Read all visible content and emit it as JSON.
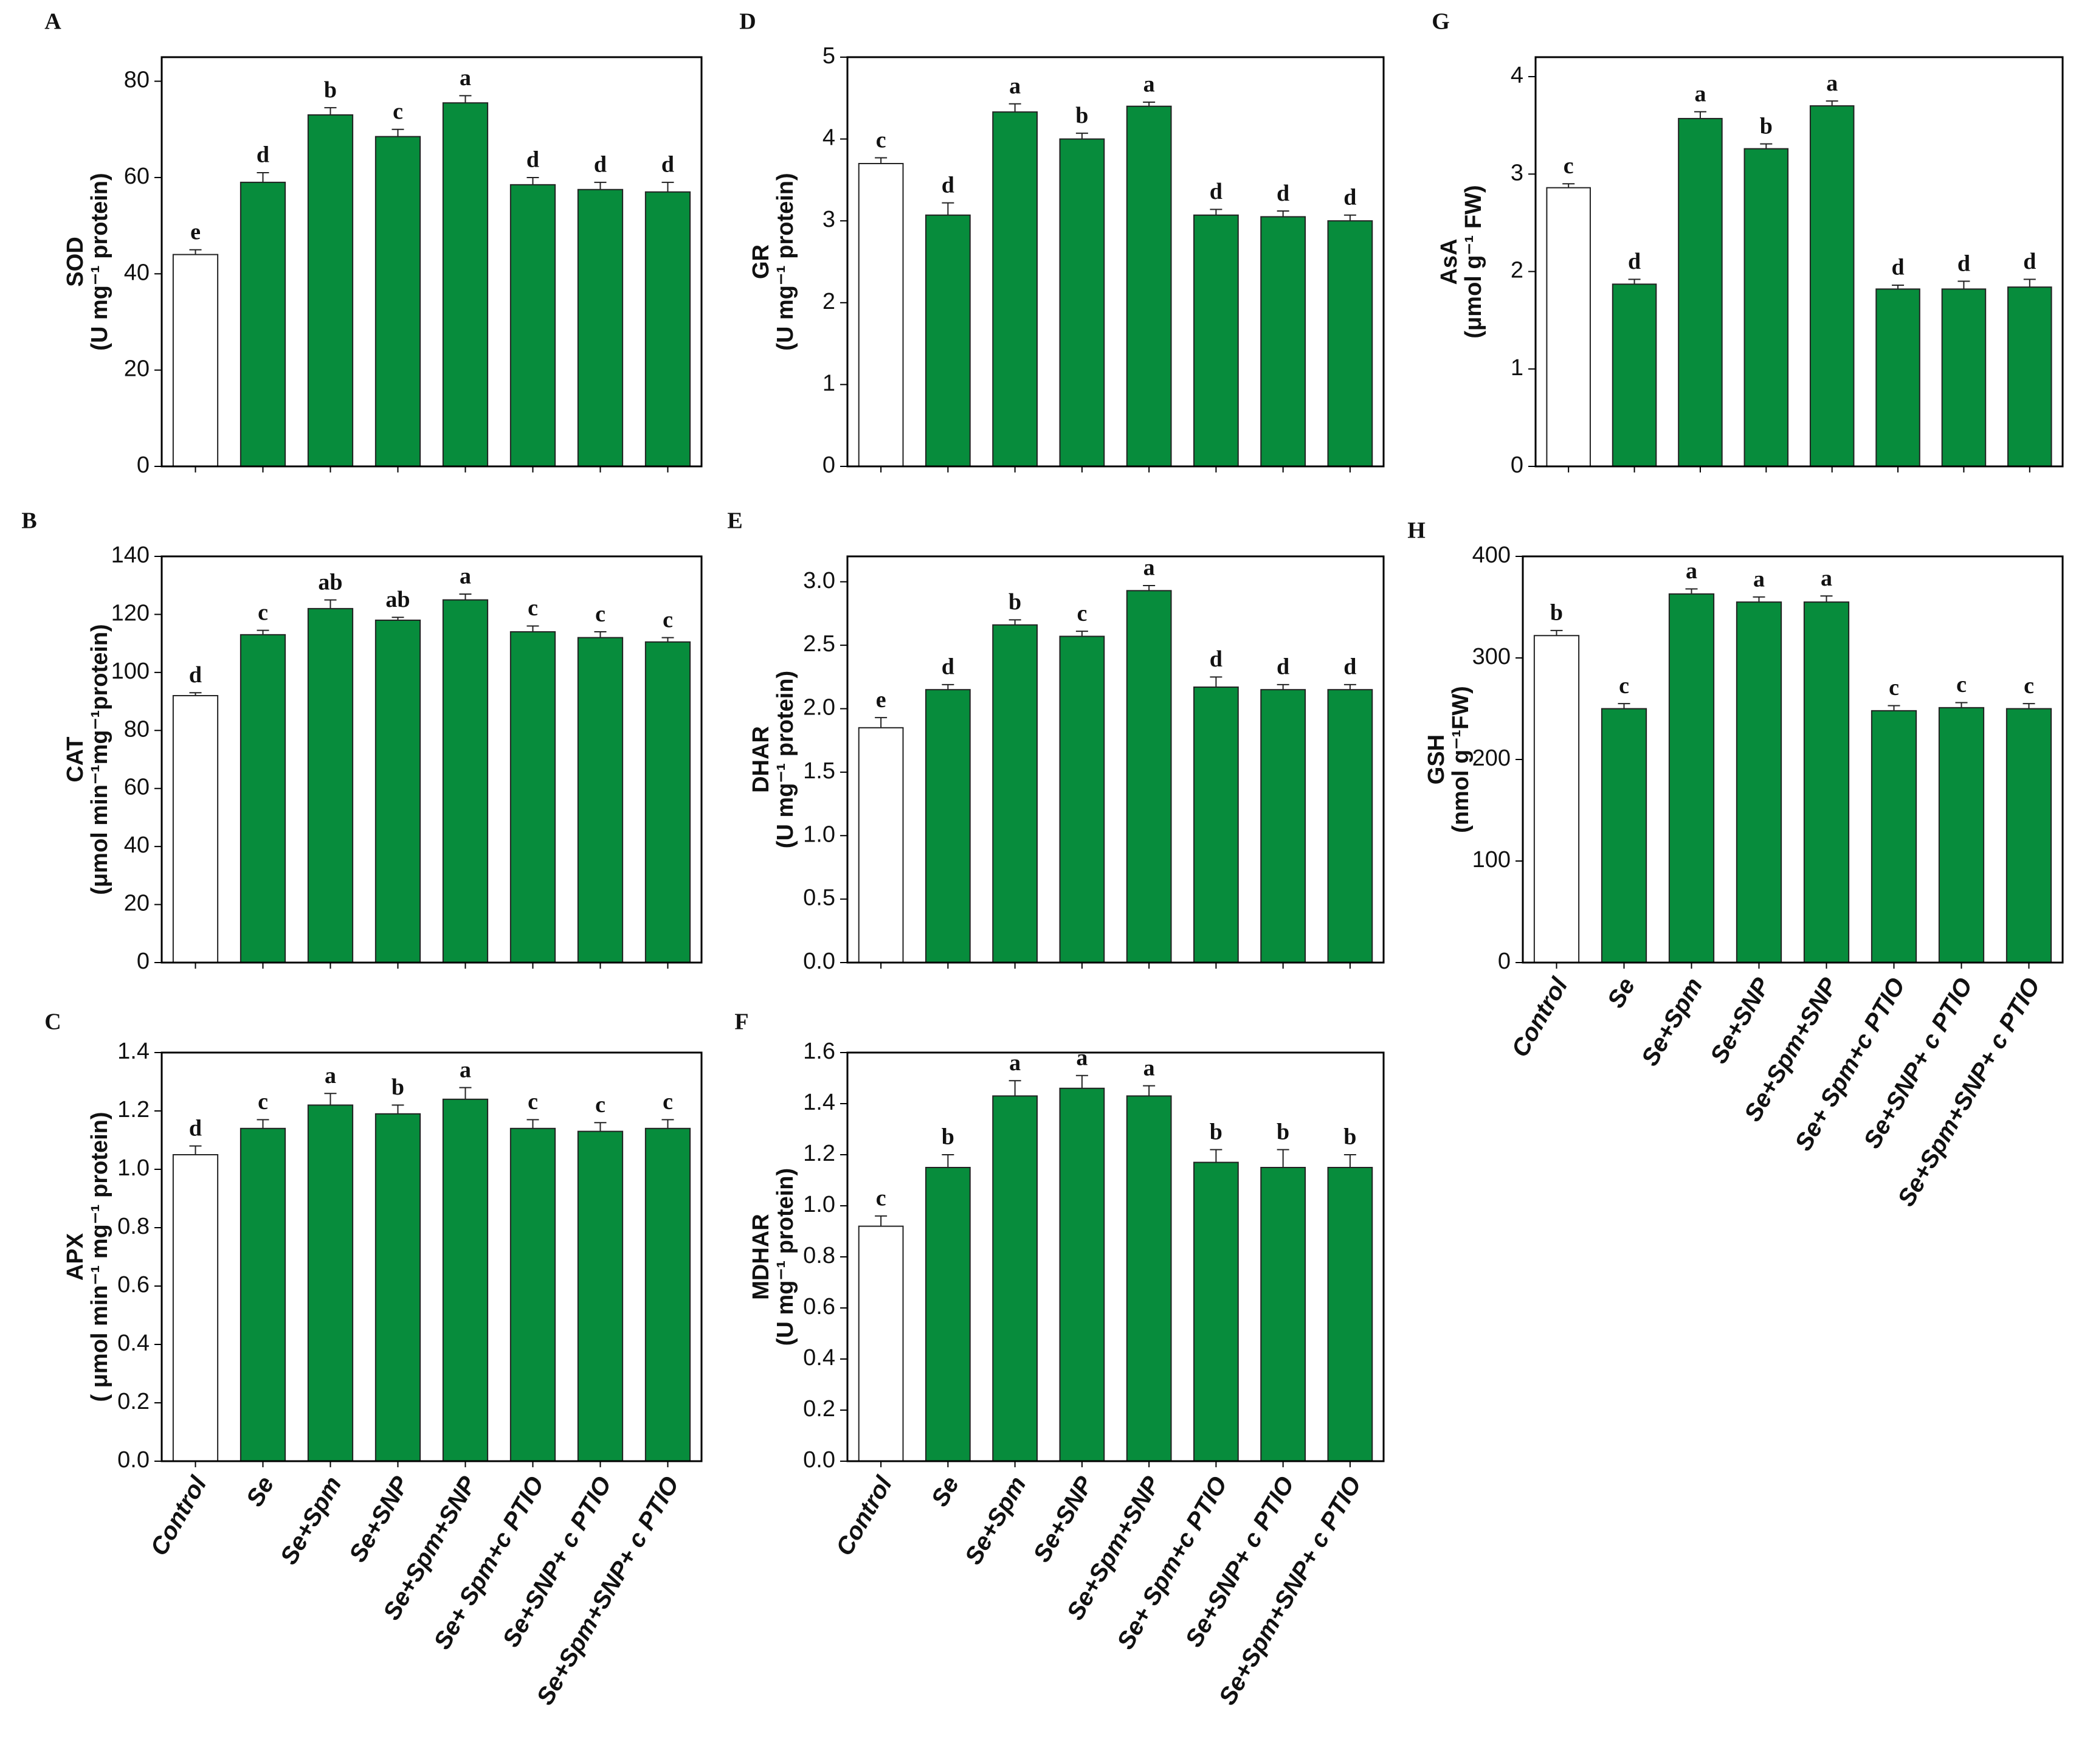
{
  "chart_data": [
    {
      "type": "bar",
      "title": "A",
      "ylabel": "SOD",
      "yunit": "(U mg⁻¹ protein)",
      "categories": [
        null,
        null,
        null,
        null,
        null,
        null,
        null,
        null
      ],
      "values": [
        44,
        59,
        73,
        68.5,
        75.5,
        58.5,
        57.5,
        57
      ],
      "errors": [
        1,
        2,
        1.5,
        1.5,
        1.5,
        1.5,
        1.5,
        2
      ],
      "letters": [
        "e",
        "d",
        "b",
        "c",
        "a",
        "d",
        "d",
        "d"
      ],
      "colors": [
        "#ffffff",
        "#078c3c",
        "#078c3c",
        "#078c3c",
        "#078c3c",
        "#078c3c",
        "#078c3c",
        "#078c3c"
      ],
      "ylim": [
        0,
        85
      ],
      "yticks": [
        0,
        20,
        40,
        60,
        80
      ]
    },
    {
      "type": "bar",
      "title": "B",
      "ylabel": "CAT",
      "yunit": "(μmol min⁻¹mg⁻¹protein)",
      "categories": [
        null,
        null,
        null,
        null,
        null,
        null,
        null,
        null
      ],
      "values": [
        92,
        113,
        122,
        118,
        125,
        114,
        112,
        110.5
      ],
      "errors": [
        1,
        1.5,
        3,
        1,
        2,
        2,
        2,
        1.5
      ],
      "letters": [
        "d",
        "c",
        "ab",
        "ab",
        "a",
        "c",
        "c",
        "c"
      ],
      "colors": [
        "#ffffff",
        "#078c3c",
        "#078c3c",
        "#078c3c",
        "#078c3c",
        "#078c3c",
        "#078c3c",
        "#078c3c"
      ],
      "ylim": [
        0,
        140
      ],
      "yticks": [
        0,
        20,
        40,
        60,
        80,
        100,
        120,
        140
      ]
    },
    {
      "type": "bar",
      "title": "C",
      "ylabel": "APX",
      "yunit": "( μmol min⁻¹ mg⁻¹ protein)",
      "categories": [
        "Control",
        "Se",
        "Se+Spm",
        "Se+SNP",
        "Se+Spm+SNP",
        "Se+ Spm+c PTIO",
        "Se+SNP+ c PTIO",
        "Se+Spm+SNP+ c PTIO"
      ],
      "values": [
        1.05,
        1.14,
        1.22,
        1.19,
        1.24,
        1.14,
        1.13,
        1.14
      ],
      "errors": [
        0.03,
        0.03,
        0.04,
        0.03,
        0.04,
        0.03,
        0.03,
        0.03
      ],
      "letters": [
        "d",
        "c",
        "a",
        "b",
        "a",
        "c",
        "c",
        "c"
      ],
      "colors": [
        "#ffffff",
        "#078c3c",
        "#078c3c",
        "#078c3c",
        "#078c3c",
        "#078c3c",
        "#078c3c",
        "#078c3c"
      ],
      "ylim": [
        0,
        1.4
      ],
      "yticks": [
        {
          "value": 0,
          "label": "0.0"
        },
        0.2,
        0.4,
        0.6,
        0.8,
        {
          "value": 1,
          "label": "1.0"
        },
        1.2,
        1.4
      ]
    },
    {
      "type": "bar",
      "title": "D",
      "ylabel": "GR",
      "yunit": "(U mg⁻¹ protein)",
      "categories": [
        null,
        null,
        null,
        null,
        null,
        null,
        null,
        null
      ],
      "values": [
        3.7,
        3.07,
        4.33,
        4.0,
        4.4,
        3.07,
        3.05,
        3.0
      ],
      "errors": [
        0.07,
        0.15,
        0.1,
        0.07,
        0.05,
        0.07,
        0.07,
        0.07
      ],
      "letters": [
        "c",
        "d",
        "a",
        "b",
        "a",
        "d",
        "d",
        "d"
      ],
      "colors": [
        "#ffffff",
        "#078c3c",
        "#078c3c",
        "#078c3c",
        "#078c3c",
        "#078c3c",
        "#078c3c",
        "#078c3c"
      ],
      "ylim": [
        0,
        5
      ],
      "yticks": [
        0,
        1,
        2,
        3,
        4,
        5
      ]
    },
    {
      "type": "bar",
      "title": "E",
      "ylabel": "DHAR",
      "yunit": "(U mg⁻¹ protein)",
      "categories": [
        null,
        null,
        null,
        null,
        null,
        null,
        null,
        null
      ],
      "values": [
        1.85,
        2.15,
        2.66,
        2.57,
        2.93,
        2.17,
        2.15,
        2.15
      ],
      "errors": [
        0.08,
        0.04,
        0.04,
        0.04,
        0.04,
        0.08,
        0.04,
        0.04
      ],
      "letters": [
        "e",
        "d",
        "b",
        "c",
        "a",
        "d",
        "d",
        "d"
      ],
      "colors": [
        "#ffffff",
        "#078c3c",
        "#078c3c",
        "#078c3c",
        "#078c3c",
        "#078c3c",
        "#078c3c",
        "#078c3c"
      ],
      "ylim": [
        0,
        3.2
      ],
      "yticks": [
        {
          "value": 0,
          "label": "0.0"
        },
        0.5,
        {
          "value": 1,
          "label": "1.0"
        },
        1.5,
        {
          "value": 2,
          "label": "2.0"
        },
        2.5,
        {
          "value": 3,
          "label": "3.0"
        }
      ]
    },
    {
      "type": "bar",
      "title": "F",
      "ylabel": "MDHAR",
      "yunit": "(U mg⁻¹ protein)",
      "categories": [
        "Control",
        "Se",
        "Se+Spm",
        "Se+SNP",
        "Se+Spm+SNP",
        "Se+ Spm+c PTIO",
        "Se+SNP+ c PTIO",
        "Se+Spm+SNP+ c PTIO"
      ],
      "values": [
        0.92,
        1.15,
        1.43,
        1.46,
        1.43,
        1.17,
        1.15,
        1.15
      ],
      "errors": [
        0.04,
        0.05,
        0.06,
        0.05,
        0.04,
        0.05,
        0.07,
        0.05
      ],
      "letters": [
        "c",
        "b",
        "a",
        "a",
        "a",
        "b",
        "b",
        "b"
      ],
      "colors": [
        "#ffffff",
        "#078c3c",
        "#078c3c",
        "#078c3c",
        "#078c3c",
        "#078c3c",
        "#078c3c",
        "#078c3c"
      ],
      "ylim": [
        0,
        1.6
      ],
      "yticks": [
        {
          "value": 0,
          "label": "0.0"
        },
        0.2,
        0.4,
        0.6,
        0.8,
        {
          "value": 1,
          "label": "1.0"
        },
        1.2,
        1.4,
        1.6
      ]
    },
    {
      "type": "bar",
      "title": "G",
      "ylabel": "AsA",
      "yunit": "(μmol g⁻¹ FW)",
      "categories": [
        null,
        null,
        null,
        null,
        null,
        null,
        null,
        null
      ],
      "values": [
        2.86,
        1.87,
        3.57,
        3.26,
        3.7,
        1.82,
        1.82,
        1.84
      ],
      "errors": [
        0.04,
        0.05,
        0.07,
        0.05,
        0.05,
        0.04,
        0.08,
        0.08
      ],
      "letters": [
        "c",
        "d",
        "a",
        "b",
        "a",
        "d",
        "d",
        "d"
      ],
      "colors": [
        "#ffffff",
        "#078c3c",
        "#078c3c",
        "#078c3c",
        "#078c3c",
        "#078c3c",
        "#078c3c",
        "#078c3c"
      ],
      "ylim": [
        0,
        4.2
      ],
      "yticks": [
        0,
        1,
        2,
        3,
        4
      ]
    },
    {
      "type": "bar",
      "title": "H",
      "ylabel": "GSH",
      "yunit": "(nmol g⁻¹FW)",
      "categories": [
        "Control",
        "Se",
        "Se+Spm",
        "Se+SNP",
        "Se+Spm+SNP",
        "Se+ Spm+c PTIO",
        "Se+SNP+ c PTIO",
        "Se+Spm+SNP+ c PTIO"
      ],
      "values": [
        322,
        250,
        363,
        355,
        355,
        248,
        251,
        250
      ],
      "errors": [
        5,
        5,
        5,
        5,
        6,
        5,
        5,
        5
      ],
      "letters": [
        "b",
        "c",
        "a",
        "a",
        "a",
        "c",
        "c",
        "c"
      ],
      "colors": [
        "#ffffff",
        "#078c3c",
        "#078c3c",
        "#078c3c",
        "#078c3c",
        "#078c3c",
        "#078c3c",
        "#078c3c"
      ],
      "ylim": [
        0,
        400
      ],
      "yticks": [
        0,
        100,
        200,
        300,
        400
      ]
    }
  ]
}
